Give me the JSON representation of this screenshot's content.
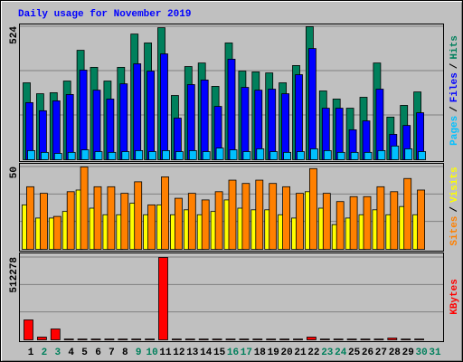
{
  "chart_data": [
    {
      "type": "bar",
      "title": "Daily usage for November 2019",
      "title_color": "#0000ff",
      "ylim": [
        0,
        524
      ],
      "yticks": [
        524
      ],
      "grid_divisions": 3,
      "legend_separator": "/",
      "series": [
        {
          "name": "Hits",
          "color": "#00805c",
          "values": [
            303,
            260,
            264,
            310,
            431,
            364,
            310,
            364,
            495,
            460,
            520,
            253,
            367,
            381,
            289,
            460,
            349,
            346,
            342,
            303,
            371,
            524,
            271,
            239,
            203,
            246,
            381,
            168,
            214,
            267,
            null
          ]
        },
        {
          "name": "Files",
          "color": "#0000ff",
          "values": [
            225,
            193,
            232,
            257,
            353,
            274,
            239,
            299,
            378,
            349,
            417,
            164,
            296,
            314,
            210,
            396,
            285,
            274,
            278,
            260,
            335,
            438,
            203,
            203,
            118,
            153,
            278,
            100,
            135,
            185,
            null
          ]
        },
        {
          "name": "Pages",
          "color": "#00c0ff",
          "values": [
            36,
            29,
            25,
            29,
            39,
            32,
            29,
            32,
            36,
            32,
            36,
            32,
            36,
            32,
            46,
            39,
            32,
            43,
            32,
            29,
            32,
            43,
            36,
            29,
            29,
            29,
            36,
            54,
            43,
            32,
            null
          ]
        }
      ]
    },
    {
      "type": "bar",
      "ylim": [
        0,
        50
      ],
      "yticks": [
        50
      ],
      "grid_divisions": 3,
      "legend_separator": "/",
      "series": [
        {
          "name": "Visits",
          "color": "#ffff00",
          "values": [
            27,
            19,
            19,
            23,
            36,
            25,
            21,
            21,
            28,
            21,
            27,
            21,
            24,
            21,
            23,
            30,
            25,
            24,
            24,
            21,
            19,
            35,
            25,
            15,
            19,
            21,
            24,
            21,
            26,
            21,
            null
          ]
        },
        {
          "name": "Sites",
          "color": "#ff8000",
          "values": [
            38,
            34,
            20,
            35,
            50,
            38,
            38,
            34,
            41,
            27,
            44,
            31,
            34,
            30,
            35,
            42,
            40,
            42,
            40,
            38,
            34,
            49,
            34,
            29,
            32,
            32,
            38,
            35,
            43,
            36,
            null
          ]
        }
      ]
    },
    {
      "type": "bar",
      "ylim": [
        0,
        512278
      ],
      "yticks": [
        512278
      ],
      "grid_divisions": 3,
      "categories": [
        "1",
        "2",
        "3",
        "4",
        "5",
        "6",
        "7",
        "8",
        "9",
        "10",
        "11",
        "12",
        "13",
        "14",
        "15",
        "16",
        "17",
        "18",
        "19",
        "20",
        "21",
        "22",
        "23",
        "24",
        "25",
        "26",
        "27",
        "28",
        "29",
        "30",
        "31"
      ],
      "category_colors": [
        "#000000",
        "#00805c",
        "#00805c",
        "#000000",
        "#000000",
        "#000000",
        "#000000",
        "#000000",
        "#00805c",
        "#00805c",
        "#000000",
        "#000000",
        "#000000",
        "#000000",
        "#000000",
        "#00805c",
        "#00805c",
        "#000000",
        "#000000",
        "#000000",
        "#000000",
        "#000000",
        "#00805c",
        "#00805c",
        "#000000",
        "#000000",
        "#000000",
        "#000000",
        "#000000",
        "#00805c",
        "#00805c"
      ],
      "series": [
        {
          "name": "KBytes",
          "color": "#ff0000",
          "values": [
            124000,
            17000,
            67500,
            5000,
            5000,
            5000,
            5000,
            5000,
            5000,
            5000,
            512278,
            5000,
            5000,
            5000,
            5000,
            5000,
            5000,
            5000,
            5000,
            5000,
            5000,
            17000,
            5000,
            5000,
            5000,
            5000,
            5000,
            11000,
            5000,
            5000,
            null
          ]
        }
      ]
    }
  ]
}
